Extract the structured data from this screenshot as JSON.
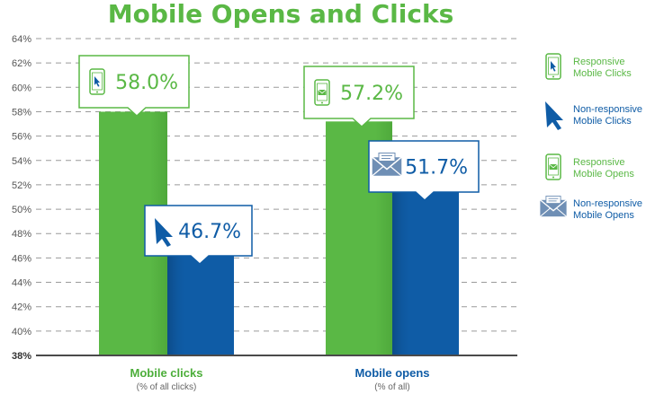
{
  "chart_data": {
    "type": "bar",
    "title": "Mobile Opens and Clicks",
    "categories": [
      "Mobile clicks",
      "Mobile opens"
    ],
    "category_subtitles": [
      "(% of all clicks)",
      "(% of all)"
    ],
    "series": [
      {
        "name": "Responsive Mobile Clicks",
        "values": [
          58.0,
          null
        ]
      },
      {
        "name": "Non-responsive Mobile Clicks",
        "values": [
          46.7,
          null
        ]
      },
      {
        "name": "Responsive Mobile Opens",
        "values": [
          null,
          57.2
        ]
      },
      {
        "name": "Non-responsive Mobile Opens",
        "values": [
          null,
          51.7
        ]
      }
    ],
    "bars": [
      {
        "category": "Mobile clicks",
        "series": "Responsive Mobile Clicks",
        "value": 58.0,
        "label": "58.0%",
        "color": "#5ab845",
        "icon": "phone-cursor-icon"
      },
      {
        "category": "Mobile clicks",
        "series": "Non-responsive Mobile Clicks",
        "value": 46.7,
        "label": "46.7%",
        "color": "#0f5ca6",
        "icon": "cursor-arrow-icon"
      },
      {
        "category": "Mobile opens",
        "series": "Responsive Mobile Opens",
        "value": 57.2,
        "label": "57.2%",
        "color": "#5ab845",
        "icon": "phone-envelope-icon"
      },
      {
        "category": "Mobile opens",
        "series": "Non-responsive Mobile Opens",
        "value": 51.7,
        "label": "51.7%",
        "color": "#0f5ca6",
        "icon": "envelope-icon"
      }
    ],
    "yticks": [
      "38%",
      "40%",
      "42%",
      "44%",
      "46%",
      "48%",
      "50%",
      "52%",
      "54%",
      "56%",
      "58%",
      "60%",
      "62%",
      "64%"
    ],
    "ylim": [
      38,
      64
    ],
    "grid": "dashed horizontal",
    "legend_position": "right",
    "legend": [
      {
        "label_lines": [
          "Responsive",
          "Mobile Clicks"
        ],
        "color": "#5ab845",
        "icon": "phone-cursor-icon"
      },
      {
        "label_lines": [
          "Non-responsive",
          "Mobile Clicks"
        ],
        "color": "#0f5ca6",
        "icon": "cursor-arrow-icon"
      },
      {
        "label_lines": [
          "Responsive",
          "Mobile Opens"
        ],
        "color": "#5ab845",
        "icon": "phone-envelope-icon"
      },
      {
        "label_lines": [
          "Non-responsive",
          "Mobile Opens"
        ],
        "color": "#0f5ca6",
        "icon": "envelope-icon"
      }
    ],
    "colors": {
      "green": "#5ab845",
      "blue": "#0f5ca6",
      "category_label_green": "#4cae3a",
      "category_label_blue": "#0f5ca6"
    }
  }
}
